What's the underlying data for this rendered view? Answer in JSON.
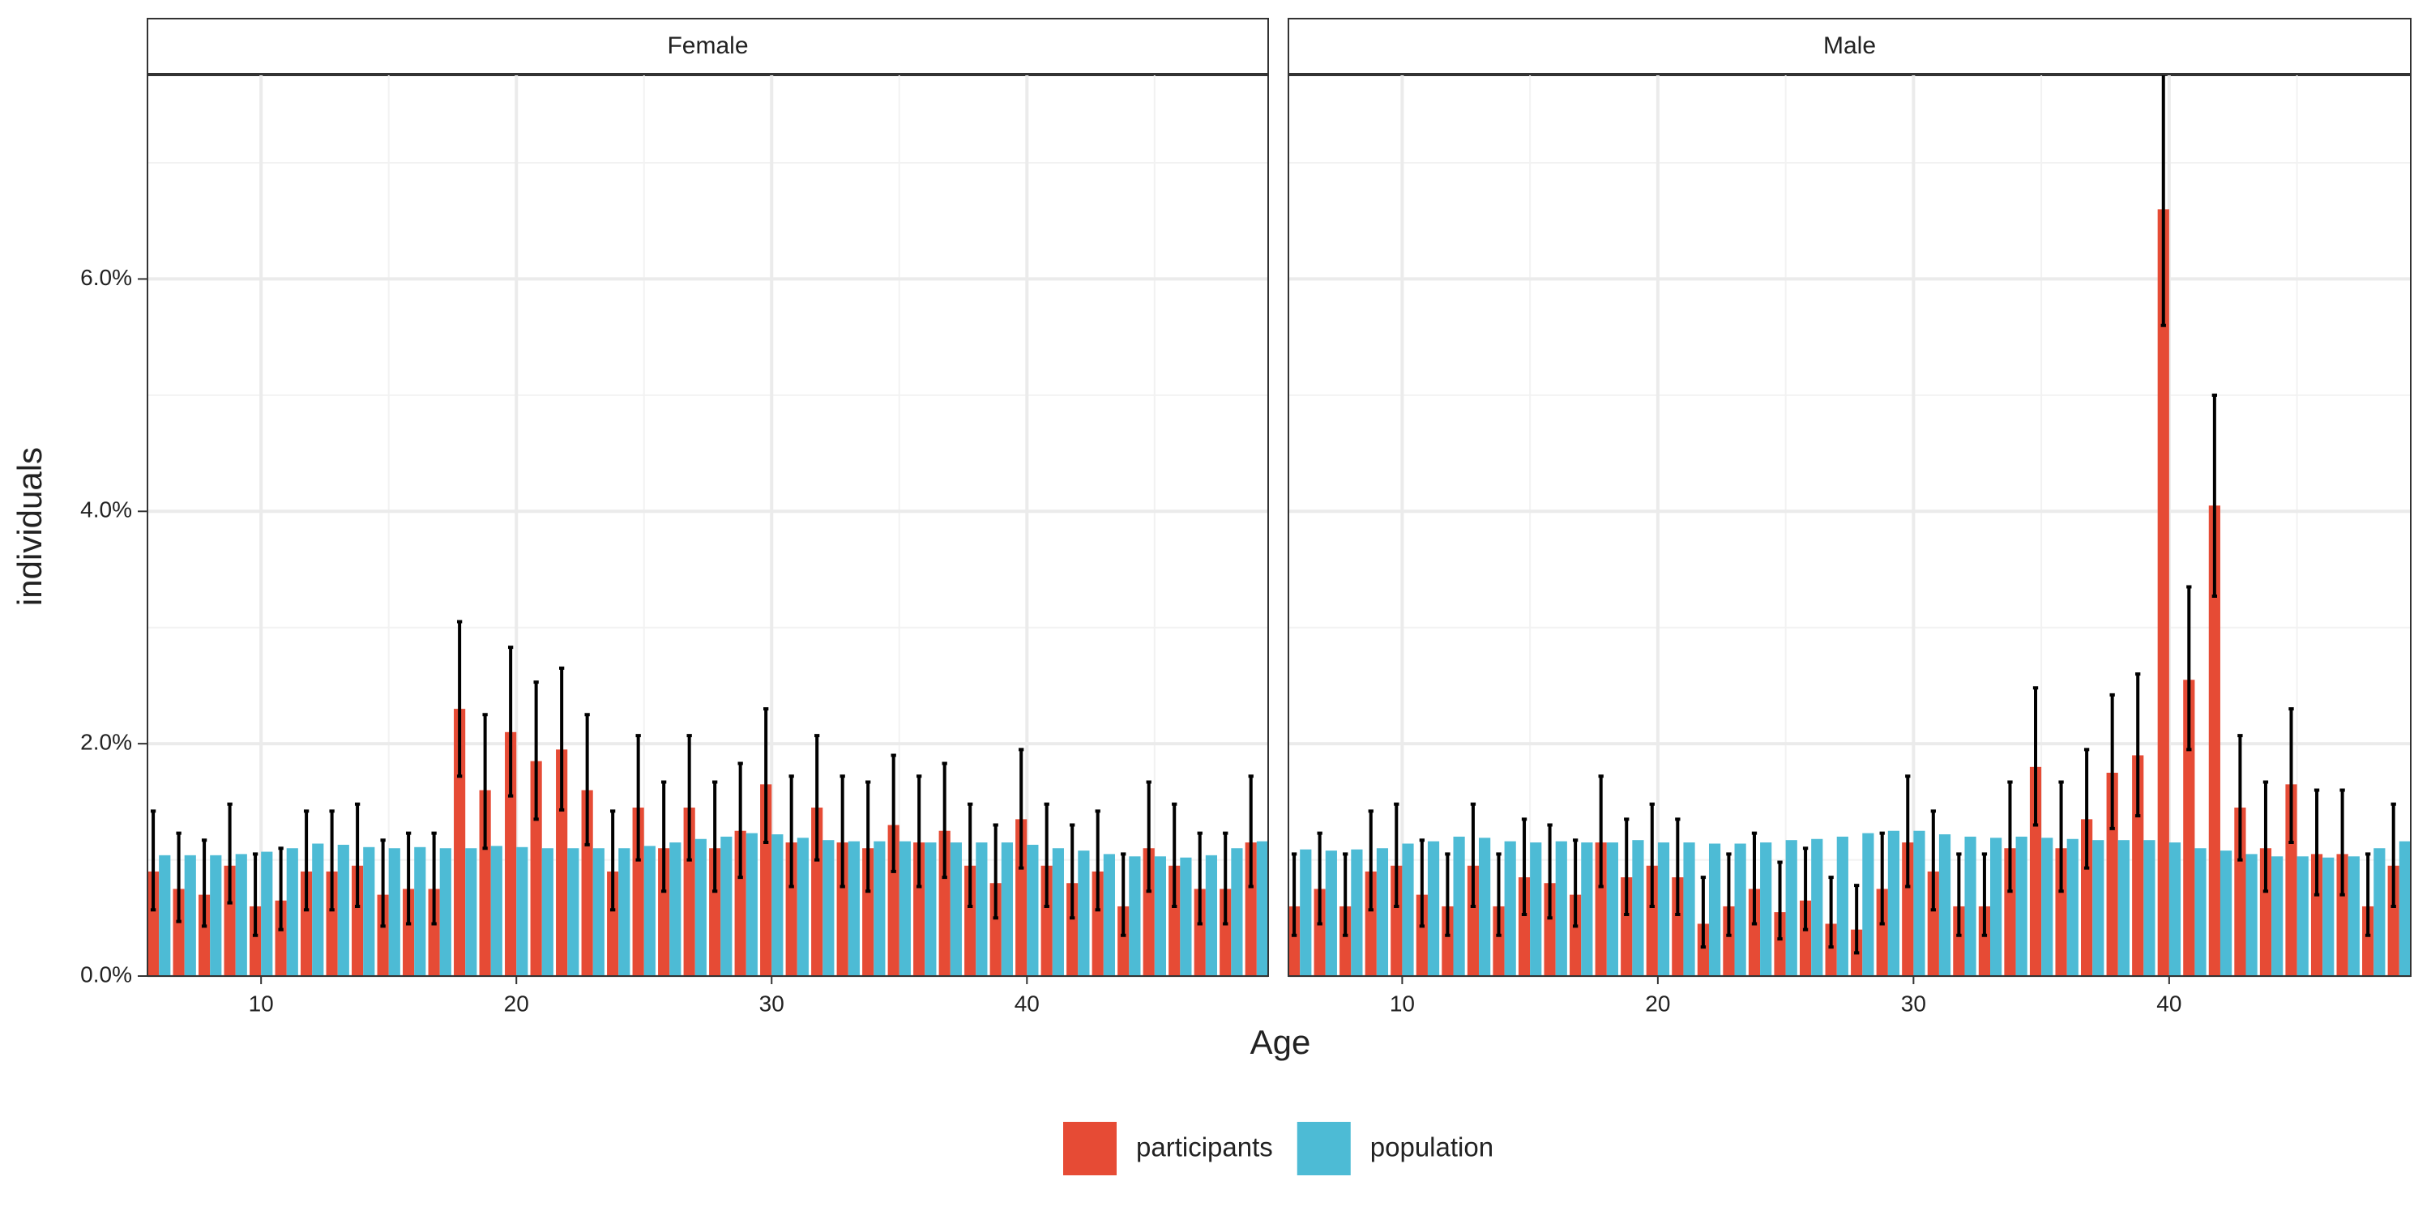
{
  "chart_data": {
    "type": "bar",
    "x_label": "Age",
    "y_label": "individuals",
    "x": [
      6,
      7,
      8,
      9,
      10,
      11,
      12,
      13,
      14,
      15,
      16,
      17,
      18,
      19,
      20,
      21,
      22,
      23,
      24,
      25,
      26,
      27,
      28,
      29,
      30,
      31,
      32,
      33,
      34,
      35,
      36,
      37,
      38,
      39,
      40,
      41,
      42,
      43,
      44,
      45,
      46,
      47,
      48,
      49
    ],
    "xlim": [
      5.55,
      49.45
    ],
    "xticks": [
      10,
      20,
      30,
      40
    ],
    "ylim": [
      0,
      7.76
    ],
    "yticks": [
      {
        "value": 0,
        "label": "0.0%"
      },
      {
        "value": 2,
        "label": "2.0%"
      },
      {
        "value": 4,
        "label": "4.0%"
      },
      {
        "value": 6,
        "label": "6.0%"
      }
    ],
    "grid": true,
    "legend": "bottom",
    "series": [
      {
        "name": "participants",
        "color": "#e64b35"
      },
      {
        "name": "population",
        "color": "#4dbbd5"
      }
    ],
    "facets": [
      {
        "title": "Female",
        "series": [
          {
            "values": [
              0.9,
              0.75,
              0.7,
              0.95,
              0.6,
              0.65,
              0.9,
              0.9,
              0.95,
              0.7,
              0.75,
              0.75,
              2.3,
              1.6,
              2.1,
              1.85,
              1.95,
              1.6,
              0.9,
              1.45,
              1.1,
              1.45,
              1.1,
              1.25,
              1.65,
              1.15,
              1.45,
              1.15,
              1.1,
              1.3,
              1.15,
              1.25,
              0.95,
              0.8,
              1.35,
              0.95,
              0.8,
              0.9,
              0.6,
              1.1,
              0.95,
              0.75,
              0.75,
              1.15
            ],
            "errors": [
              [
                0.57,
                1.42
              ],
              [
                0.47,
                1.23
              ],
              [
                0.43,
                1.17
              ],
              [
                0.63,
                1.48
              ],
              [
                0.35,
                1.05
              ],
              [
                0.4,
                1.1
              ],
              [
                0.57,
                1.42
              ],
              [
                0.57,
                1.42
              ],
              [
                0.6,
                1.48
              ],
              [
                0.43,
                1.17
              ],
              [
                0.45,
                1.23
              ],
              [
                0.45,
                1.23
              ],
              [
                1.72,
                3.05
              ],
              [
                1.1,
                2.25
              ],
              [
                1.55,
                2.83
              ],
              [
                1.35,
                2.53
              ],
              [
                1.43,
                2.65
              ],
              [
                1.13,
                2.25
              ],
              [
                0.57,
                1.42
              ],
              [
                1.0,
                2.07
              ],
              [
                0.73,
                1.67
              ],
              [
                1.0,
                2.07
              ],
              [
                0.73,
                1.67
              ],
              [
                0.85,
                1.83
              ],
              [
                1.15,
                2.3
              ],
              [
                0.77,
                1.72
              ],
              [
                1.0,
                2.07
              ],
              [
                0.77,
                1.72
              ],
              [
                0.73,
                1.67
              ],
              [
                0.9,
                1.9
              ],
              [
                0.77,
                1.72
              ],
              [
                0.85,
                1.83
              ],
              [
                0.6,
                1.48
              ],
              [
                0.5,
                1.3
              ],
              [
                0.93,
                1.95
              ],
              [
                0.6,
                1.48
              ],
              [
                0.5,
                1.3
              ],
              [
                0.57,
                1.42
              ],
              [
                0.35,
                1.05
              ],
              [
                0.73,
                1.67
              ],
              [
                0.6,
                1.48
              ],
              [
                0.45,
                1.23
              ],
              [
                0.45,
                1.23
              ],
              [
                0.77,
                1.72
              ]
            ]
          },
          {
            "values": [
              1.04,
              1.04,
              1.04,
              1.05,
              1.07,
              1.1,
              1.14,
              1.13,
              1.11,
              1.1,
              1.11,
              1.1,
              1.1,
              1.12,
              1.11,
              1.1,
              1.1,
              1.1,
              1.1,
              1.12,
              1.15,
              1.18,
              1.2,
              1.23,
              1.22,
              1.19,
              1.17,
              1.16,
              1.16,
              1.16,
              1.15,
              1.15,
              1.15,
              1.15,
              1.13,
              1.1,
              1.08,
              1.05,
              1.03,
              1.03,
              1.02,
              1.04,
              1.1,
              1.16
            ]
          }
        ]
      },
      {
        "title": "Male",
        "series": [
          {
            "values": [
              0.6,
              0.75,
              0.6,
              0.9,
              0.95,
              0.7,
              0.6,
              0.95,
              0.6,
              0.85,
              0.8,
              0.7,
              1.15,
              0.85,
              0.95,
              0.85,
              0.45,
              0.6,
              0.75,
              0.55,
              0.65,
              0.45,
              0.4,
              0.75,
              1.15,
              0.9,
              0.6,
              0.6,
              1.1,
              1.8,
              1.1,
              1.35,
              1.75,
              1.9,
              6.6,
              2.55,
              4.05,
              1.45,
              1.1,
              1.65,
              1.05,
              1.05,
              0.6,
              0.95
            ],
            "errors": [
              [
                0.35,
                1.05
              ],
              [
                0.45,
                1.23
              ],
              [
                0.35,
                1.05
              ],
              [
                0.57,
                1.42
              ],
              [
                0.6,
                1.48
              ],
              [
                0.43,
                1.17
              ],
              [
                0.35,
                1.05
              ],
              [
                0.6,
                1.48
              ],
              [
                0.35,
                1.05
              ],
              [
                0.53,
                1.35
              ],
              [
                0.5,
                1.3
              ],
              [
                0.43,
                1.17
              ],
              [
                0.77,
                1.72
              ],
              [
                0.53,
                1.35
              ],
              [
                0.6,
                1.48
              ],
              [
                0.53,
                1.35
              ],
              [
                0.25,
                0.85
              ],
              [
                0.35,
                1.05
              ],
              [
                0.45,
                1.23
              ],
              [
                0.32,
                0.98
              ],
              [
                0.4,
                1.1
              ],
              [
                0.25,
                0.85
              ],
              [
                0.2,
                0.78
              ],
              [
                0.45,
                1.23
              ],
              [
                0.77,
                1.72
              ],
              [
                0.57,
                1.42
              ],
              [
                0.35,
                1.05
              ],
              [
                0.35,
                1.05
              ],
              [
                0.73,
                1.67
              ],
              [
                1.3,
                2.48
              ],
              [
                0.73,
                1.67
              ],
              [
                0.93,
                1.95
              ],
              [
                1.27,
                2.42
              ],
              [
                1.38,
                2.6
              ],
              [
                5.6,
                7.8
              ],
              [
                1.95,
                3.35
              ],
              [
                3.27,
                5.0
              ],
              [
                1.0,
                2.07
              ],
              [
                0.73,
                1.67
              ],
              [
                1.15,
                2.3
              ],
              [
                0.7,
                1.6
              ],
              [
                0.7,
                1.6
              ],
              [
                0.35,
                1.05
              ],
              [
                0.6,
                1.48
              ]
            ]
          },
          {
            "values": [
              1.09,
              1.08,
              1.09,
              1.1,
              1.14,
              1.16,
              1.2,
              1.19,
              1.16,
              1.15,
              1.16,
              1.15,
              1.15,
              1.17,
              1.15,
              1.15,
              1.14,
              1.14,
              1.15,
              1.17,
              1.18,
              1.2,
              1.23,
              1.25,
              1.25,
              1.22,
              1.2,
              1.19,
              1.2,
              1.19,
              1.18,
              1.17,
              1.17,
              1.17,
              1.15,
              1.1,
              1.08,
              1.05,
              1.03,
              1.03,
              1.02,
              1.03,
              1.1,
              1.16
            ]
          }
        ]
      }
    ]
  }
}
